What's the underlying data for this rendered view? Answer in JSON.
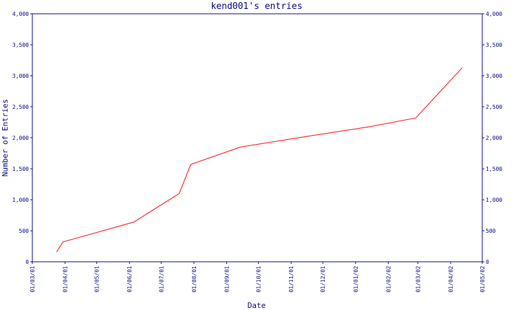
{
  "chart_data": {
    "type": "line",
    "title": "kend001's entries",
    "xlabel": "Date",
    "ylabel": "Number of Entries",
    "x_ticks": [
      "01/03/01",
      "01/04/01",
      "01/05/01",
      "01/06/01",
      "01/07/01",
      "01/08/01",
      "01/09/01",
      "01/10/01",
      "01/11/01",
      "01/12/01",
      "01/01/02",
      "01/02/02",
      "01/03/02",
      "01/04/02",
      "01/05/02"
    ],
    "y_ticks": [
      "0",
      "500",
      "1,000",
      "1,500",
      "2,000",
      "2,500",
      "3,000",
      "3,500",
      "4,000"
    ],
    "ylim": [
      0,
      4000
    ],
    "grid": false,
    "line_color": "#ff0000",
    "axis_color": "#000080",
    "x": [
      "2001-03-24",
      "2001-03-30",
      "2001-06-05",
      "2001-07-18",
      "2001-07-29",
      "2001-09-14",
      "2001-11-15",
      "2002-01-15",
      "2002-02-27",
      "2002-04-12"
    ],
    "values": [
      160,
      320,
      640,
      1100,
      1570,
      1850,
      2020,
      2180,
      2320,
      3130
    ]
  }
}
